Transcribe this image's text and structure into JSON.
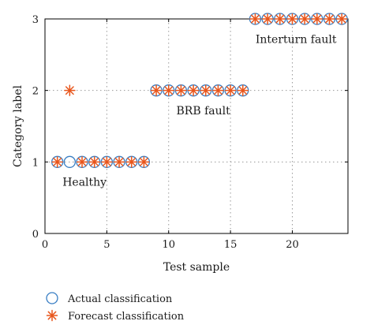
{
  "chart_data": {
    "type": "scatter",
    "xlabel": "Test sample",
    "ylabel": "Category label",
    "xlim": [
      0,
      24.5
    ],
    "ylim": [
      0,
      3
    ],
    "xticks": [
      0,
      5,
      10,
      15,
      20
    ],
    "yticks": [
      0,
      1,
      2,
      3
    ],
    "grid": true,
    "legend_position": "bottom-left",
    "series": [
      {
        "name": "Actual classification",
        "marker": "circle",
        "color": "#3a7fc4",
        "x": [
          1,
          2,
          3,
          4,
          5,
          6,
          7,
          8,
          9,
          10,
          11,
          12,
          13,
          14,
          15,
          16,
          17,
          18,
          19,
          20,
          21,
          22,
          23,
          24
        ],
        "y": [
          1,
          1,
          1,
          1,
          1,
          1,
          1,
          1,
          2,
          2,
          2,
          2,
          2,
          2,
          2,
          2,
          3,
          3,
          3,
          3,
          3,
          3,
          3,
          3
        ]
      },
      {
        "name": "Forecast classification",
        "marker": "asterisk",
        "color": "#e8561c",
        "x": [
          1,
          2,
          3,
          4,
          5,
          6,
          7,
          8,
          9,
          10,
          11,
          12,
          13,
          14,
          15,
          16,
          17,
          18,
          19,
          20,
          21,
          22,
          23,
          24
        ],
        "y": [
          1,
          2,
          1,
          1,
          1,
          1,
          1,
          1,
          2,
          2,
          2,
          2,
          2,
          2,
          2,
          2,
          3,
          3,
          3,
          3,
          3,
          3,
          3,
          3
        ]
      }
    ],
    "annotations": [
      {
        "text": "Healthy",
        "x": 3.2,
        "y": 0.72
      },
      {
        "text": "BRB fault",
        "x": 12.8,
        "y": 1.72
      },
      {
        "text": "Interturn fault",
        "x": 20.3,
        "y": 2.72
      }
    ]
  }
}
